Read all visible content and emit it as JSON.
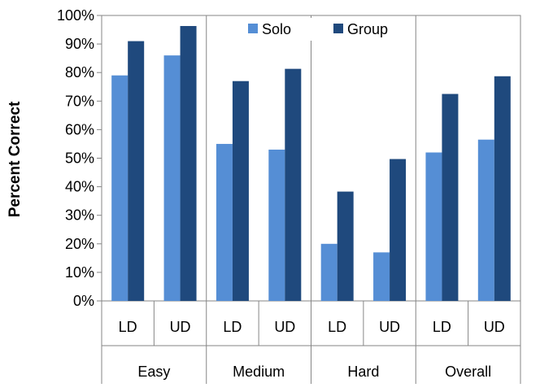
{
  "chart_data": {
    "type": "bar",
    "title": "",
    "ylabel": "Percent Correct",
    "xlabel": "",
    "ylim": [
      0,
      1
    ],
    "y_ticks": [
      0,
      0.1,
      0.2,
      0.3,
      0.4,
      0.5,
      0.6,
      0.7,
      0.8,
      0.9,
      1.0
    ],
    "y_tick_labels": [
      "0%",
      "10%",
      "20%",
      "30%",
      "40%",
      "50%",
      "60%",
      "70%",
      "80%",
      "90%",
      "100%"
    ],
    "grid": false,
    "legend_position": "top-center",
    "groups": [
      {
        "label": "Easy",
        "categories": [
          "LD",
          "UD"
        ]
      },
      {
        "label": "Medium",
        "categories": [
          "LD",
          "UD"
        ]
      },
      {
        "label": "Hard",
        "categories": [
          "LD",
          "UD"
        ]
      },
      {
        "label": "Overall",
        "categories": [
          "LD",
          "UD"
        ]
      }
    ],
    "categories": [
      "LD",
      "UD",
      "LD",
      "UD",
      "LD",
      "UD",
      "LD",
      "UD"
    ],
    "series": [
      {
        "name": "Solo",
        "color": "#558ED5",
        "values": [
          0.79,
          0.86,
          0.55,
          0.53,
          0.2,
          0.17,
          0.52,
          0.565
        ]
      },
      {
        "name": "Group",
        "color": "#1F497D",
        "values": [
          0.91,
          0.963,
          0.77,
          0.813,
          0.383,
          0.497,
          0.725,
          0.787
        ]
      }
    ]
  }
}
